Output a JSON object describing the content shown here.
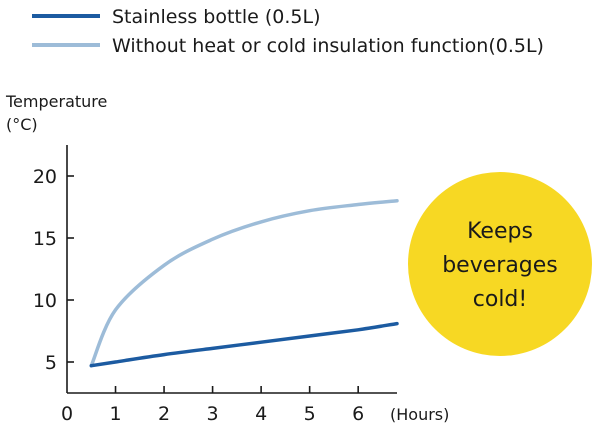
{
  "chart_data": {
    "type": "line",
    "xlabel": "(Hours)",
    "ylabel_line1": "Temperature",
    "ylabel_line2": "(°C)",
    "x_ticks": [
      0,
      1,
      2,
      3,
      4,
      5,
      6
    ],
    "x_tick_labels": [
      "0",
      "1",
      "2",
      "3",
      "4",
      "5",
      "6"
    ],
    "y_ticks": [
      5,
      10,
      15,
      20
    ],
    "y_tick_labels": [
      "5",
      "10",
      "15",
      "20"
    ],
    "xlim": [
      0,
      6.8
    ],
    "ylim": [
      2.5,
      22.5
    ],
    "grid": false,
    "legend_position": "top",
    "series": [
      {
        "name": "Stainless bottle (0.5L)",
        "color": "#1c5ba1",
        "x": [
          0.5,
          1,
          2,
          3,
          4,
          5,
          6,
          6.8
        ],
        "y": [
          4.7,
          5.0,
          5.6,
          6.1,
          6.6,
          7.1,
          7.6,
          8.1
        ]
      },
      {
        "name": "Without heat or cold insulation function(0.5L)",
        "color": "#9dbcd8",
        "x": [
          0.5,
          1,
          2,
          3,
          4,
          5,
          6,
          6.8
        ],
        "y": [
          4.7,
          9.2,
          12.8,
          14.9,
          16.3,
          17.2,
          17.7,
          18.0
        ]
      }
    ],
    "annotation": {
      "lines": [
        "Keeps",
        "beverages",
        "cold!"
      ],
      "color": "#f7d823"
    }
  }
}
